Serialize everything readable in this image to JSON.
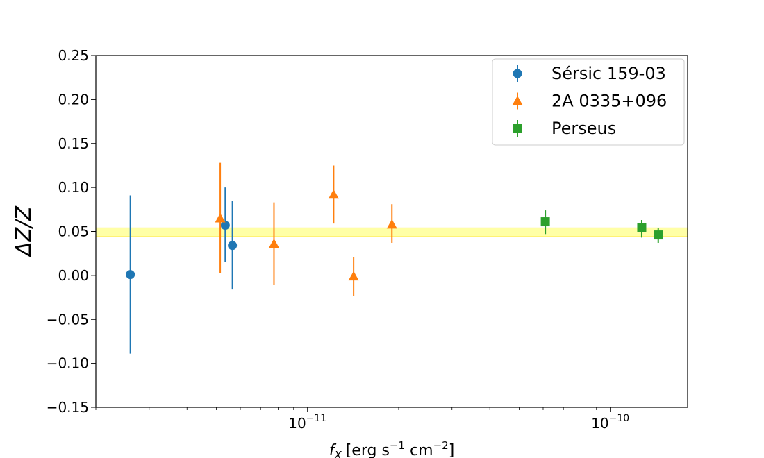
{
  "chart_data": {
    "type": "scatter",
    "title": "",
    "xlabel": {
      "var": "f",
      "sub": "X",
      "text": "[erg s",
      "sup1": "−1",
      "mid": " cm",
      "sup2": "−2",
      "end": "]"
    },
    "ylabel": "ΔZ/Z",
    "xscale": "log",
    "xlim": [
      2e-12,
      1.8e-10
    ],
    "ylim": [
      -0.15,
      0.25
    ],
    "yticks": [
      {
        "value": -0.15,
        "label": "−0.15"
      },
      {
        "value": -0.1,
        "label": "−0.10"
      },
      {
        "value": -0.05,
        "label": "−0.05"
      },
      {
        "value": 0.0,
        "label": "0.00"
      },
      {
        "value": 0.05,
        "label": "0.05"
      },
      {
        "value": 0.1,
        "label": "0.10"
      },
      {
        "value": 0.15,
        "label": "0.15"
      },
      {
        "value": 0.2,
        "label": "0.20"
      },
      {
        "value": 0.25,
        "label": "0.25"
      }
    ],
    "xticks": [
      {
        "value": 1e-11,
        "base": "10",
        "exp": "−11"
      },
      {
        "value": 1e-10,
        "base": "10",
        "exp": "−10"
      }
    ],
    "band": {
      "y0": 0.044,
      "y1": 0.054,
      "color": "#ffff80"
    },
    "legend_position": "top-right",
    "grid": false,
    "series": [
      {
        "name": "Sérsic 159-03",
        "marker": "circle",
        "color": "#1f77b4",
        "points": [
          {
            "x": 2.6e-12,
            "y": 0.001,
            "lo": -0.089,
            "hi": 0.091
          },
          {
            "x": 5.35e-12,
            "y": 0.057,
            "lo": 0.015,
            "hi": 0.1
          },
          {
            "x": 5.65e-12,
            "y": 0.034,
            "lo": -0.016,
            "hi": 0.085
          }
        ]
      },
      {
        "name": "2A 0335+096",
        "marker": "triangle",
        "color": "#ff7f0e",
        "points": [
          {
            "x": 5.15e-12,
            "y": 0.065,
            "lo": 0.003,
            "hi": 0.128
          },
          {
            "x": 7.75e-12,
            "y": 0.036,
            "lo": -0.011,
            "hi": 0.083
          },
          {
            "x": 1.22e-11,
            "y": 0.092,
            "lo": 0.059,
            "hi": 0.125
          },
          {
            "x": 1.42e-11,
            "y": -0.001,
            "lo": -0.023,
            "hi": 0.021
          },
          {
            "x": 1.9e-11,
            "y": 0.058,
            "lo": 0.037,
            "hi": 0.081
          }
        ]
      },
      {
        "name": "Perseus",
        "marker": "square",
        "color": "#2ca02c",
        "points": [
          {
            "x": 6.1e-11,
            "y": 0.061,
            "lo": 0.047,
            "hi": 0.074
          },
          {
            "x": 1.27e-10,
            "y": 0.054,
            "lo": 0.043,
            "hi": 0.063
          },
          {
            "x": 1.44e-10,
            "y": 0.046,
            "lo": 0.037,
            "hi": 0.054
          }
        ]
      }
    ]
  }
}
